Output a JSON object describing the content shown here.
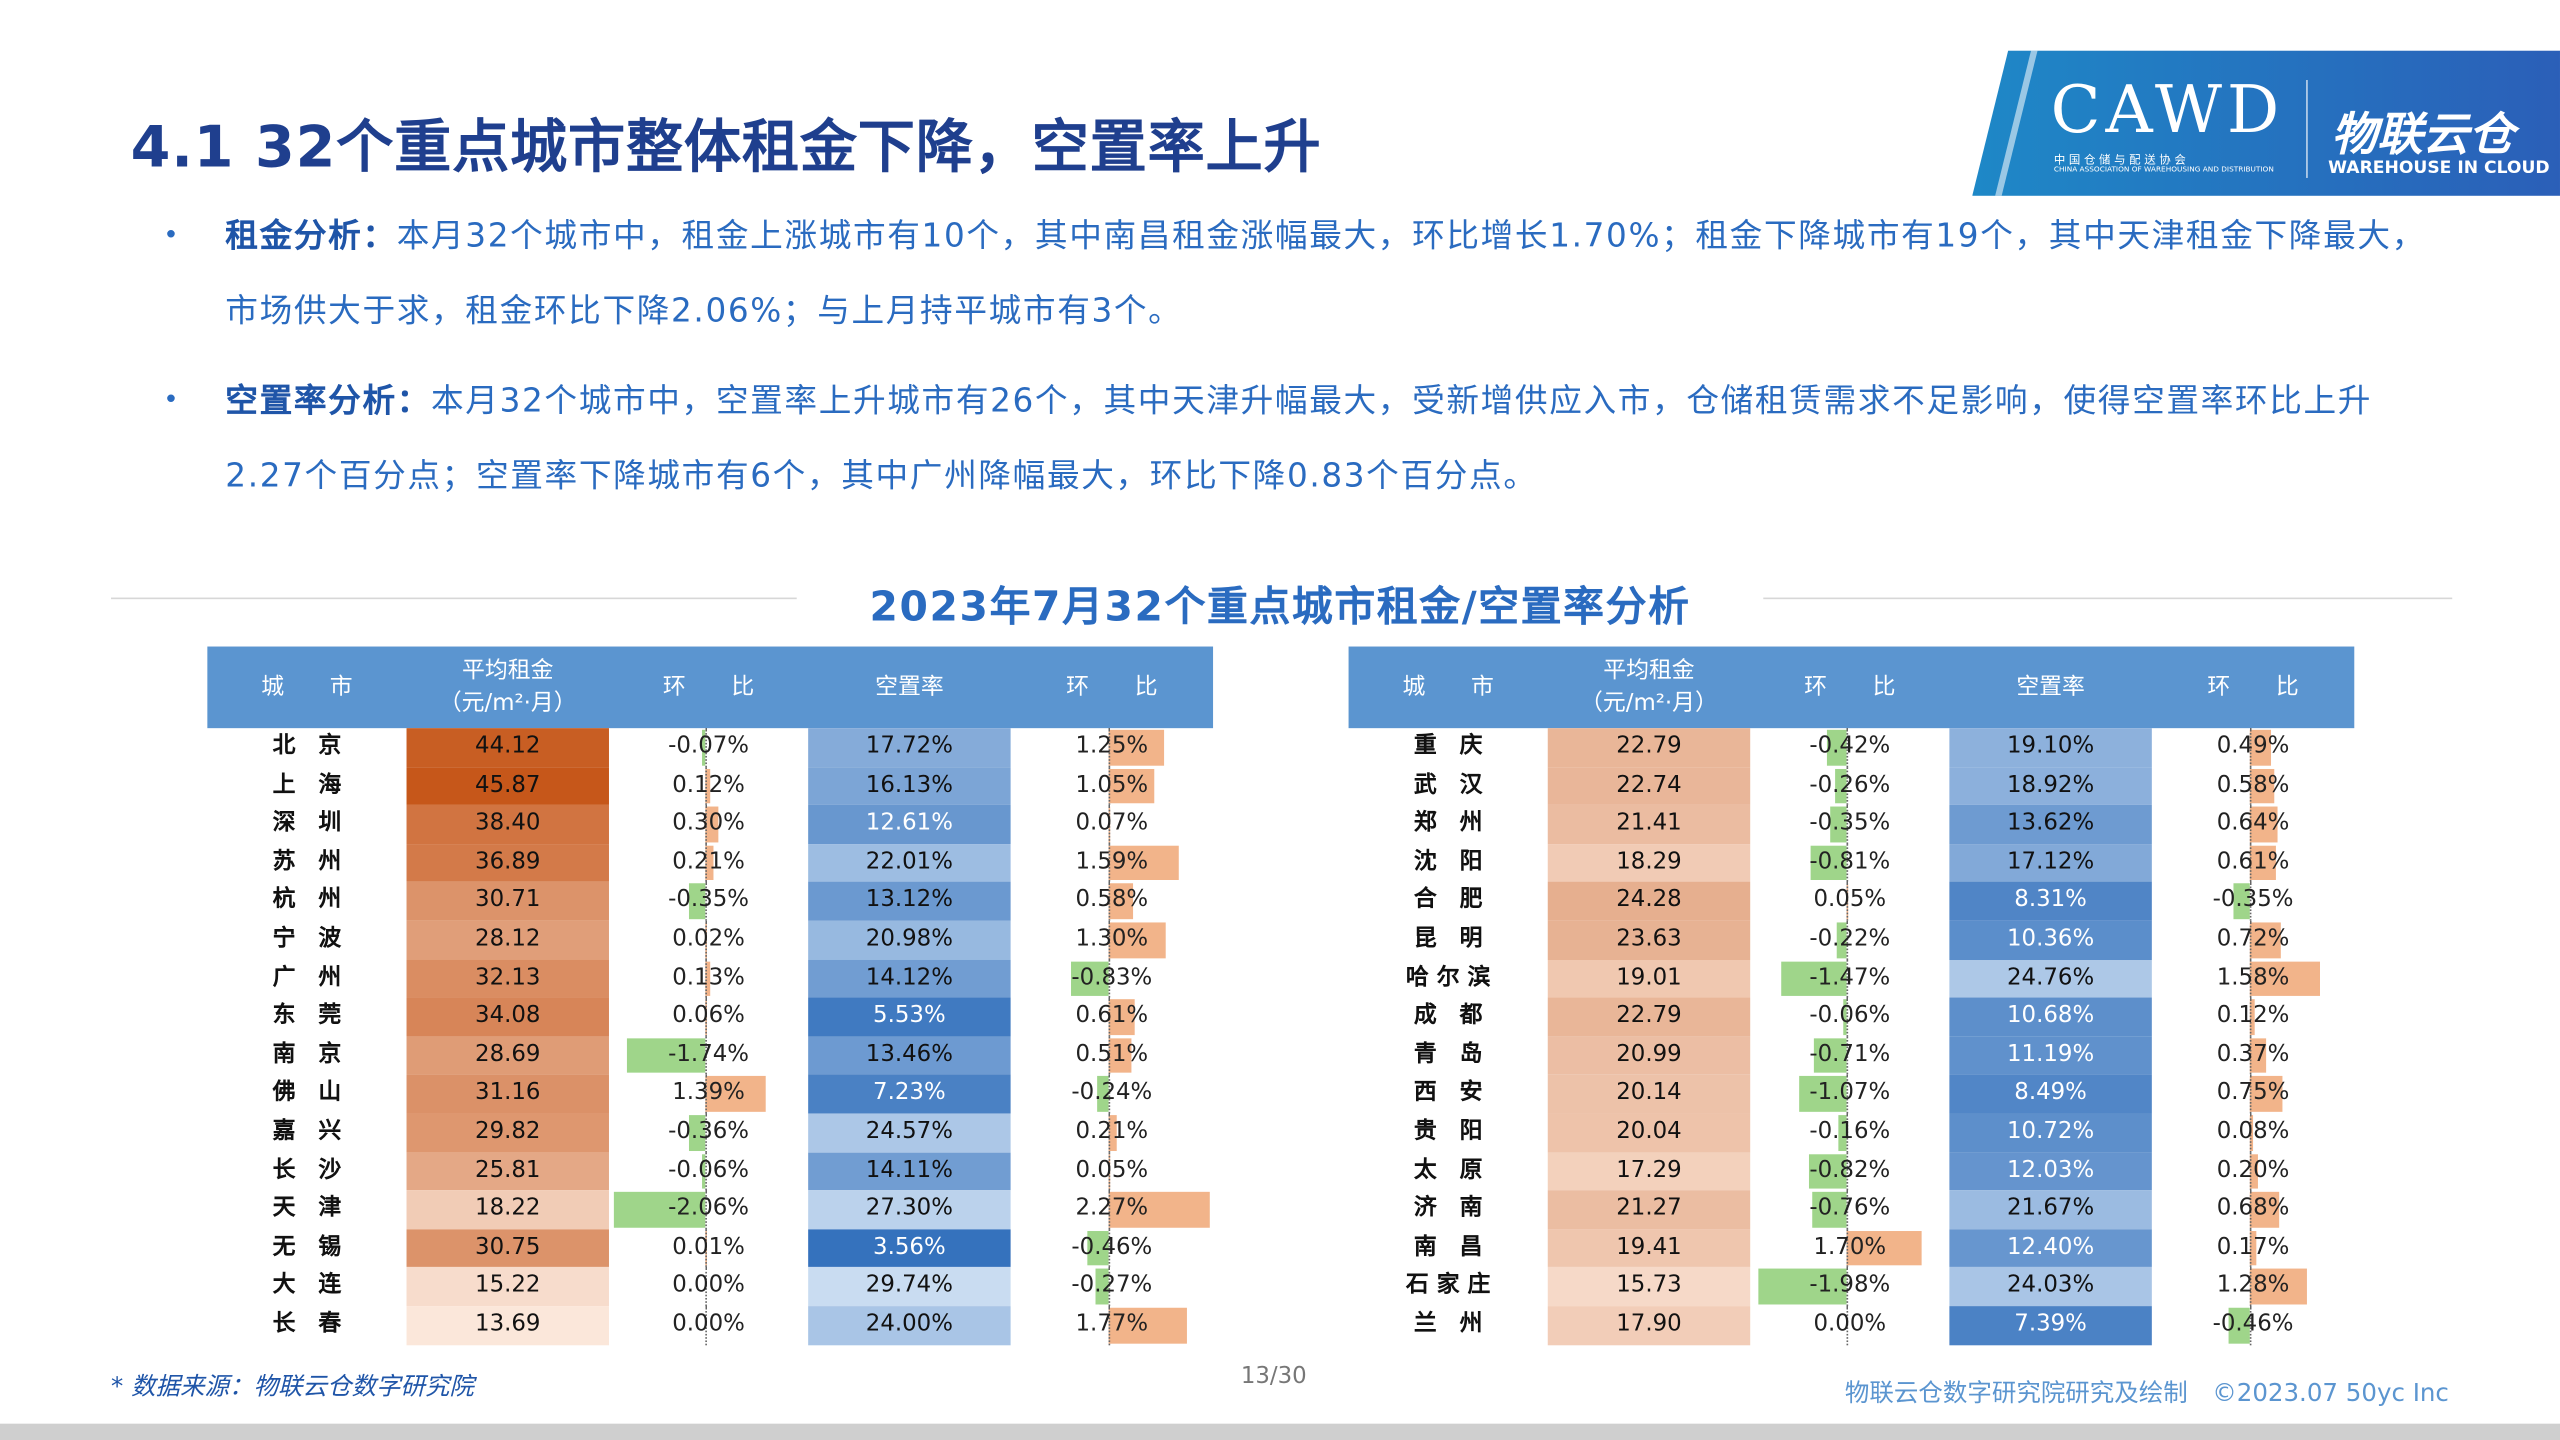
{
  "title": "4.1 32个重点城市整体租金下降，空置率上升",
  "logo": {
    "brand": "CAWD",
    "brand_sub": "中 国 仓 储 与 配 送 协 会",
    "brand_sub_en": "CHINA ASSOCIATION OF WAREHOUSING AND DISTRIBUTION",
    "partner": "物联云仓",
    "partner_sub": "WAREHOUSE IN CLOUD"
  },
  "bullets": [
    {
      "label": "租金分析：",
      "text": "本月32个城市中，租金上涨城市有10个，其中南昌租金涨幅最大，环比增长1.70%；租金下降城市有19个，其中天津租金下降最大，市场供大于求，租金环比下降2.06%；与上月持平城市有3个。"
    },
    {
      "label": "空置率分析：",
      "text": "本月32个城市中，空置率上升城市有26个，其中天津升幅最大，受新增供应入市，仓储租赁需求不足影响，使得空置率环比上升2.27个百分点；空置率下降城市有6个，其中广州降幅最大，环比下降0.83个百分点。"
    }
  ],
  "section_title": "2023年7月32个重点城市租金/空置率分析",
  "table_headers": {
    "city": "城　　市",
    "rent": "平均租金\n（元/m²·月）",
    "rent_chg": "环　　比",
    "vacancy": "空置率",
    "vac_chg": "环　　比"
  },
  "tables": [
    {
      "rows": [
        {
          "city": "北　京",
          "rent": "44.12",
          "rent_chg": "-0.07%",
          "rent_chg_v": -0.07,
          "vacancy": "17.72%",
          "vac_chg": "1.25%",
          "vac_chg_v": 1.25
        },
        {
          "city": "上　海",
          "rent": "45.87",
          "rent_chg": "0.12%",
          "rent_chg_v": 0.12,
          "vacancy": "16.13%",
          "vac_chg": "1.05%",
          "vac_chg_v": 1.05
        },
        {
          "city": "深　圳",
          "rent": "38.40",
          "rent_chg": "0.30%",
          "rent_chg_v": 0.3,
          "vacancy": "12.61%",
          "vac_chg": "0.07%",
          "vac_chg_v": 0.07
        },
        {
          "city": "苏　州",
          "rent": "36.89",
          "rent_chg": "0.21%",
          "rent_chg_v": 0.21,
          "vacancy": "22.01%",
          "vac_chg": "1.59%",
          "vac_chg_v": 1.59
        },
        {
          "city": "杭　州",
          "rent": "30.71",
          "rent_chg": "-0.35%",
          "rent_chg_v": -0.35,
          "vacancy": "13.12%",
          "vac_chg": "0.58%",
          "vac_chg_v": 0.58
        },
        {
          "city": "宁　波",
          "rent": "28.12",
          "rent_chg": "0.02%",
          "rent_chg_v": 0.02,
          "vacancy": "20.98%",
          "vac_chg": "1.30%",
          "vac_chg_v": 1.3
        },
        {
          "city": "广　州",
          "rent": "32.13",
          "rent_chg": "0.13%",
          "rent_chg_v": 0.13,
          "vacancy": "14.12%",
          "vac_chg": "-0.83%",
          "vac_chg_v": -0.83
        },
        {
          "city": "东　莞",
          "rent": "34.08",
          "rent_chg": "0.06%",
          "rent_chg_v": 0.06,
          "vacancy": "5.53%",
          "vac_chg": "0.61%",
          "vac_chg_v": 0.61
        },
        {
          "city": "南　京",
          "rent": "28.69",
          "rent_chg": "-1.74%",
          "rent_chg_v": -1.74,
          "vacancy": "13.46%",
          "vac_chg": "0.51%",
          "vac_chg_v": 0.51
        },
        {
          "city": "佛　山",
          "rent": "31.16",
          "rent_chg": "1.39%",
          "rent_chg_v": 1.39,
          "vacancy": "7.23%",
          "vac_chg": "-0.24%",
          "vac_chg_v": -0.24
        },
        {
          "city": "嘉　兴",
          "rent": "29.82",
          "rent_chg": "-0.36%",
          "rent_chg_v": -0.36,
          "vacancy": "24.57%",
          "vac_chg": "0.21%",
          "vac_chg_v": 0.21
        },
        {
          "city": "长　沙",
          "rent": "25.81",
          "rent_chg": "-0.06%",
          "rent_chg_v": -0.06,
          "vacancy": "14.11%",
          "vac_chg": "0.05%",
          "vac_chg_v": 0.05
        },
        {
          "city": "天　津",
          "rent": "18.22",
          "rent_chg": "-2.06%",
          "rent_chg_v": -2.06,
          "vacancy": "27.30%",
          "vac_chg": "2.27%",
          "vac_chg_v": 2.27
        },
        {
          "city": "无　锡",
          "rent": "30.75",
          "rent_chg": "0.01%",
          "rent_chg_v": 0.01,
          "vacancy": "3.56%",
          "vac_chg": "-0.46%",
          "vac_chg_v": -0.46
        },
        {
          "city": "大　连",
          "rent": "15.22",
          "rent_chg": "0.00%",
          "rent_chg_v": 0.0,
          "vacancy": "29.74%",
          "vac_chg": "-0.27%",
          "vac_chg_v": -0.27
        },
        {
          "city": "长　春",
          "rent": "13.69",
          "rent_chg": "0.00%",
          "rent_chg_v": 0.0,
          "vacancy": "24.00%",
          "vac_chg": "1.77%",
          "vac_chg_v": 1.77
        }
      ]
    },
    {
      "rows": [
        {
          "city": "重　庆",
          "rent": "22.79",
          "rent_chg": "-0.42%",
          "rent_chg_v": -0.42,
          "vacancy": "19.10%",
          "vac_chg": "0.49%",
          "vac_chg_v": 0.49
        },
        {
          "city": "武　汉",
          "rent": "22.74",
          "rent_chg": "-0.26%",
          "rent_chg_v": -0.26,
          "vacancy": "18.92%",
          "vac_chg": "0.58%",
          "vac_chg_v": 0.58
        },
        {
          "city": "郑　州",
          "rent": "21.41",
          "rent_chg": "-0.35%",
          "rent_chg_v": -0.35,
          "vacancy": "13.62%",
          "vac_chg": "0.64%",
          "vac_chg_v": 0.64
        },
        {
          "city": "沈　阳",
          "rent": "18.29",
          "rent_chg": "-0.81%",
          "rent_chg_v": -0.81,
          "vacancy": "17.12%",
          "vac_chg": "0.61%",
          "vac_chg_v": 0.61
        },
        {
          "city": "合　肥",
          "rent": "24.28",
          "rent_chg": "0.05%",
          "rent_chg_v": 0.05,
          "vacancy": "8.31%",
          "vac_chg": "-0.35%",
          "vac_chg_v": -0.35
        },
        {
          "city": "昆　明",
          "rent": "23.63",
          "rent_chg": "-0.22%",
          "rent_chg_v": -0.22,
          "vacancy": "10.36%",
          "vac_chg": "0.72%",
          "vac_chg_v": 0.72
        },
        {
          "city": "哈 尔 滨",
          "rent": "19.01",
          "rent_chg": "-1.47%",
          "rent_chg_v": -1.47,
          "vacancy": "24.76%",
          "vac_chg": "1.58%",
          "vac_chg_v": 1.58
        },
        {
          "city": "成　都",
          "rent": "22.79",
          "rent_chg": "-0.06%",
          "rent_chg_v": -0.06,
          "vacancy": "10.68%",
          "vac_chg": "0.12%",
          "vac_chg_v": 0.12
        },
        {
          "city": "青　岛",
          "rent": "20.99",
          "rent_chg": "-0.71%",
          "rent_chg_v": -0.71,
          "vacancy": "11.19%",
          "vac_chg": "0.37%",
          "vac_chg_v": 0.37
        },
        {
          "city": "西　安",
          "rent": "20.14",
          "rent_chg": "-1.07%",
          "rent_chg_v": -1.07,
          "vacancy": "8.49%",
          "vac_chg": "0.75%",
          "vac_chg_v": 0.75
        },
        {
          "city": "贵　阳",
          "rent": "20.04",
          "rent_chg": "-0.16%",
          "rent_chg_v": -0.16,
          "vacancy": "10.72%",
          "vac_chg": "0.08%",
          "vac_chg_v": 0.08
        },
        {
          "city": "太　原",
          "rent": "17.29",
          "rent_chg": "-0.82%",
          "rent_chg_v": -0.82,
          "vacancy": "12.03%",
          "vac_chg": "0.20%",
          "vac_chg_v": 0.2
        },
        {
          "city": "济　南",
          "rent": "21.27",
          "rent_chg": "-0.76%",
          "rent_chg_v": -0.76,
          "vacancy": "21.67%",
          "vac_chg": "0.68%",
          "vac_chg_v": 0.68
        },
        {
          "city": "南　昌",
          "rent": "19.41",
          "rent_chg": "1.70%",
          "rent_chg_v": 1.7,
          "vacancy": "12.40%",
          "vac_chg": "0.17%",
          "vac_chg_v": 0.17
        },
        {
          "city": "石 家 庄",
          "rent": "15.73",
          "rent_chg": "-1.98%",
          "rent_chg_v": -1.98,
          "vacancy": "24.03%",
          "vac_chg": "1.28%",
          "vac_chg_v": 1.28
        },
        {
          "city": "兰　州",
          "rent": "17.90",
          "rent_chg": "0.00%",
          "rent_chg_v": 0.0,
          "vacancy": "7.39%",
          "vac_chg": "-0.46%",
          "vac_chg_v": -0.46
        }
      ]
    }
  ],
  "source": "* 数据来源：物联云仓数字研究院",
  "page_number": "13/30",
  "credit": "物联云仓数字研究院研究及绘制　©2023.07 50yc Inc",
  "colors": {
    "title": "#1f3f8e",
    "text": "#2a6bc0",
    "header": "#5b95d0",
    "pos_bar": "#f2b48a",
    "neg_bar": "#9fd58a"
  }
}
